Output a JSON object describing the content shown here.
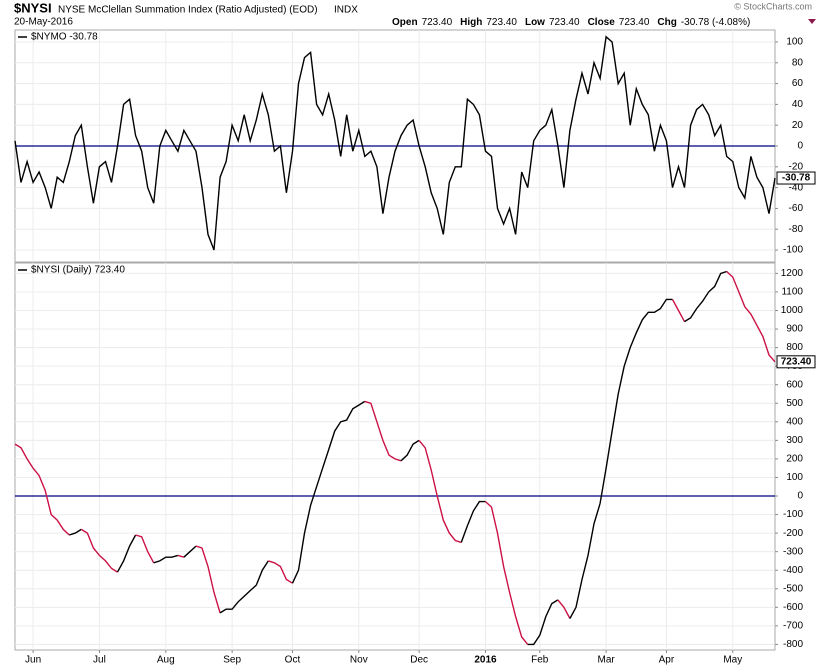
{
  "header": {
    "symbol": "$NYSI",
    "name": "NYSE McClellan Summation Index (Ratio Adjusted) (EOD)",
    "exchange": "INDX",
    "date": "20-May-2016",
    "copyright": "© StockCharts.com",
    "quote": [
      {
        "label": "Open",
        "value": "723.40"
      },
      {
        "label": "High",
        "value": "723.40"
      },
      {
        "label": "Low",
        "value": "723.40"
      },
      {
        "label": "Close",
        "value": "723.40"
      },
      {
        "label": "Chg",
        "value": "-30.78 (-4.08%)"
      }
    ]
  },
  "chart_data": [
    {
      "type": "line",
      "legend": "$NYMO -30.78",
      "ylim": [
        -111.5,
        111.5
      ],
      "yticks": [
        -100,
        -80,
        -60,
        -40,
        -20,
        0,
        20,
        40,
        60,
        80,
        100
      ],
      "xlim": [
        0,
        126
      ],
      "grid": true,
      "zero_line": "#000080",
      "series": [
        {
          "name": "$NYMO",
          "color": "#000000",
          "last_label": "-30.78",
          "values": [
            5,
            -35,
            -15,
            -35,
            -25,
            -40,
            -60,
            -30,
            -35,
            -15,
            10,
            20,
            -20,
            -55,
            -20,
            -15,
            -35,
            0,
            40,
            45,
            10,
            -5,
            -40,
            -55,
            0,
            15,
            5,
            -5,
            15,
            5,
            -5,
            -40,
            -85,
            -100,
            -30,
            -15,
            20,
            5,
            30,
            5,
            25,
            50,
            30,
            -5,
            0,
            -45,
            -5,
            60,
            85,
            90,
            40,
            30,
            50,
            25,
            -10,
            30,
            -5,
            15,
            -10,
            -5,
            -20,
            -65,
            -30,
            -5,
            10,
            20,
            25,
            0,
            -20,
            -45,
            -60,
            -85,
            -35,
            -20,
            -20,
            45,
            40,
            30,
            -5,
            -10,
            -60,
            -75,
            -60,
            -85,
            -25,
            -40,
            5,
            15,
            20,
            35,
            0,
            -40,
            15,
            45,
            70,
            50,
            80,
            65,
            105,
            100,
            60,
            70,
            20,
            55,
            40,
            30,
            -5,
            20,
            5,
            -40,
            -20,
            -40,
            20,
            35,
            40,
            30,
            10,
            20,
            -10,
            -15,
            -40,
            -50,
            -10,
            -30,
            -40,
            -65,
            -30.78
          ]
        }
      ]
    },
    {
      "type": "line",
      "legend": "$NYSI (Daily) 723.40",
      "ylim": [
        -830,
        1256
      ],
      "yticks": [
        -800,
        -700,
        -600,
        -500,
        -400,
        -300,
        -200,
        -100,
        0,
        100,
        200,
        300,
        400,
        500,
        600,
        700,
        800,
        900,
        1000,
        1100,
        1200
      ],
      "xlim": [
        0,
        126
      ],
      "grid": true,
      "zero_line": "#000080",
      "xticks": [
        {
          "value": 3,
          "label": "Jun"
        },
        {
          "value": 14,
          "label": "Jul"
        },
        {
          "value": 25,
          "label": "Aug"
        },
        {
          "value": 36,
          "label": "Sep"
        },
        {
          "value": 46,
          "label": "Oct"
        },
        {
          "value": 57,
          "label": "Nov"
        },
        {
          "value": 67,
          "label": "Dec"
        },
        {
          "value": 78,
          "label": "2016"
        },
        {
          "value": 87,
          "label": "Feb"
        },
        {
          "value": 98,
          "label": "Mar"
        },
        {
          "value": 108,
          "label": "Apr"
        },
        {
          "value": 119,
          "label": "May"
        }
      ],
      "series": [
        {
          "name": "$NYSI",
          "color": "#000000",
          "down_color": "#cc1144",
          "last_label": "723.40",
          "values": [
            280,
            260,
            200,
            150,
            110,
            30,
            -100,
            -130,
            -180,
            -210,
            -200,
            -180,
            -200,
            -280,
            -320,
            -350,
            -390,
            -410,
            -350,
            -270,
            -210,
            -220,
            -300,
            -360,
            -350,
            -330,
            -330,
            -320,
            -330,
            -300,
            -270,
            -280,
            -380,
            -520,
            -630,
            -610,
            -610,
            -570,
            -540,
            -510,
            -480,
            -400,
            -350,
            -360,
            -380,
            -450,
            -470,
            -400,
            -200,
            -50,
            50,
            150,
            250,
            350,
            400,
            410,
            470,
            490,
            510,
            500,
            400,
            300,
            220,
            200,
            190,
            220,
            280,
            300,
            260,
            140,
            0,
            -130,
            -200,
            -240,
            -250,
            -160,
            -80,
            -30,
            -30,
            -60,
            -200,
            -380,
            -520,
            -650,
            -760,
            -800,
            -800,
            -750,
            -650,
            -580,
            -560,
            -600,
            -660,
            -600,
            -450,
            -320,
            -150,
            -40,
            150,
            350,
            550,
            700,
            800,
            880,
            950,
            990,
            990,
            1010,
            1060,
            1060,
            1000,
            940,
            960,
            1010,
            1050,
            1100,
            1130,
            1200,
            1210,
            1180,
            1100,
            1020,
            980,
            920,
            860,
            760,
            723.4
          ]
        }
      ]
    }
  ]
}
